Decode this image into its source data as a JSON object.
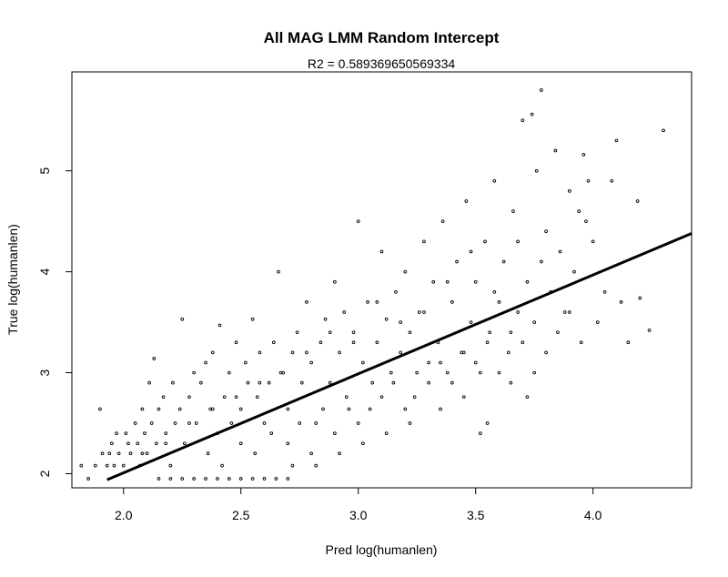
{
  "chart_data": {
    "type": "scatter",
    "title": "All MAG LMM Random Intercept",
    "subtitle": "R2 = 0.589369650569334",
    "xlabel": "Pred log(humanlen)",
    "ylabel": "True log(humanlen)",
    "xlim": [
      1.78,
      4.42
    ],
    "ylim": [
      1.86,
      5.98
    ],
    "xticks": [
      2.0,
      2.5,
      3.0,
      3.5,
      4.0
    ],
    "xtick_labels": [
      "2.0",
      "2.5",
      "3.0",
      "3.5",
      "4.0"
    ],
    "yticks": [
      2,
      3,
      4,
      5
    ],
    "ytick_labels": [
      "2",
      "3",
      "4",
      "5"
    ],
    "grid": false,
    "legend": "none",
    "point_color": "#000000",
    "fit_line": {
      "x": [
        1.93,
        4.42
      ],
      "y": [
        1.94,
        4.38
      ],
      "color": "#000000"
    },
    "series": [
      {
        "points": [
          [
            1.82,
            2.08
          ],
          [
            1.85,
            1.95
          ],
          [
            1.88,
            2.08
          ],
          [
            1.9,
            2.64
          ],
          [
            1.91,
            2.2
          ],
          [
            1.93,
            2.08
          ],
          [
            1.94,
            2.2
          ],
          [
            1.95,
            2.3
          ],
          [
            1.96,
            2.08
          ],
          [
            1.97,
            2.4
          ],
          [
            1.98,
            2.2
          ],
          [
            2.0,
            2.08
          ],
          [
            2.01,
            2.4
          ],
          [
            2.02,
            2.3
          ],
          [
            2.03,
            2.2
          ],
          [
            2.05,
            2.5
          ],
          [
            2.06,
            2.3
          ],
          [
            2.07,
            2.08
          ],
          [
            2.08,
            2.64
          ],
          [
            2.09,
            2.4
          ],
          [
            2.1,
            2.2
          ],
          [
            2.11,
            2.9
          ],
          [
            2.12,
            2.5
          ],
          [
            2.13,
            3.14
          ],
          [
            2.14,
            2.3
          ],
          [
            2.15,
            2.64
          ],
          [
            2.17,
            2.76
          ],
          [
            2.18,
            2.4
          ],
          [
            2.2,
            2.08
          ],
          [
            2.21,
            2.9
          ],
          [
            2.22,
            2.5
          ],
          [
            2.24,
            2.64
          ],
          [
            2.25,
            3.53
          ],
          [
            2.26,
            2.3
          ],
          [
            2.28,
            2.76
          ],
          [
            2.3,
            3.0
          ],
          [
            2.31,
            2.5
          ],
          [
            2.33,
            2.9
          ],
          [
            2.35,
            3.1
          ],
          [
            2.37,
            2.64
          ],
          [
            2.38,
            3.2
          ],
          [
            2.4,
            2.4
          ],
          [
            2.41,
            3.47
          ],
          [
            2.43,
            2.76
          ],
          [
            2.45,
            3.0
          ],
          [
            2.46,
            2.5
          ],
          [
            2.48,
            3.3
          ],
          [
            2.5,
            2.64
          ],
          [
            2.52,
            3.1
          ],
          [
            2.53,
            2.9
          ],
          [
            2.55,
            3.53
          ],
          [
            2.57,
            2.76
          ],
          [
            2.58,
            3.2
          ],
          [
            2.6,
            2.5
          ],
          [
            2.62,
            2.9
          ],
          [
            2.64,
            3.3
          ],
          [
            2.66,
            4.0
          ],
          [
            2.67,
            3.0
          ],
          [
            2.7,
            2.64
          ],
          [
            2.72,
            3.2
          ],
          [
            2.74,
            3.4
          ],
          [
            2.76,
            2.9
          ],
          [
            2.78,
            3.7
          ],
          [
            2.8,
            3.1
          ],
          [
            2.82,
            2.5
          ],
          [
            2.84,
            3.3
          ],
          [
            2.86,
            3.53
          ],
          [
            2.88,
            2.9
          ],
          [
            2.9,
            3.9
          ],
          [
            2.92,
            3.2
          ],
          [
            2.94,
            3.6
          ],
          [
            2.96,
            2.64
          ],
          [
            2.98,
            3.4
          ],
          [
            3.0,
            4.5
          ],
          [
            3.02,
            3.1
          ],
          [
            3.04,
            3.7
          ],
          [
            3.06,
            2.9
          ],
          [
            3.08,
            3.3
          ],
          [
            3.1,
            4.2
          ],
          [
            3.12,
            3.53
          ],
          [
            3.14,
            3.0
          ],
          [
            3.16,
            3.8
          ],
          [
            3.18,
            3.2
          ],
          [
            3.2,
            4.0
          ],
          [
            3.22,
            3.4
          ],
          [
            3.24,
            2.76
          ],
          [
            3.26,
            3.6
          ],
          [
            3.28,
            4.3
          ],
          [
            3.3,
            3.1
          ],
          [
            3.32,
            3.9
          ],
          [
            3.34,
            3.3
          ],
          [
            3.36,
            4.5
          ],
          [
            3.38,
            3.0
          ],
          [
            3.4,
            3.7
          ],
          [
            3.42,
            4.1
          ],
          [
            3.44,
            3.2
          ],
          [
            3.46,
            4.7
          ],
          [
            3.48,
            3.5
          ],
          [
            3.5,
            3.9
          ],
          [
            3.52,
            3.0
          ],
          [
            3.54,
            4.3
          ],
          [
            3.56,
            3.4
          ],
          [
            3.58,
            4.9
          ],
          [
            3.6,
            3.7
          ],
          [
            3.62,
            4.1
          ],
          [
            3.64,
            3.2
          ],
          [
            3.66,
            4.6
          ],
          [
            3.68,
            3.6
          ],
          [
            3.7,
            5.5
          ],
          [
            3.72,
            3.9
          ],
          [
            3.74,
            5.56
          ],
          [
            3.76,
            5.0
          ],
          [
            3.78,
            5.8
          ],
          [
            3.8,
            4.4
          ],
          [
            3.82,
            3.8
          ],
          [
            3.84,
            5.2
          ],
          [
            3.86,
            4.2
          ],
          [
            3.88,
            3.6
          ],
          [
            3.9,
            4.8
          ],
          [
            3.92,
            4.0
          ],
          [
            3.94,
            4.6
          ],
          [
            3.96,
            5.16
          ],
          [
            3.98,
            4.9
          ],
          [
            4.0,
            4.3
          ],
          [
            4.02,
            3.5
          ],
          [
            4.05,
            3.8
          ],
          [
            4.08,
            4.9
          ],
          [
            4.1,
            5.3
          ],
          [
            4.12,
            3.7
          ],
          [
            4.15,
            3.3
          ],
          [
            4.19,
            4.7
          ],
          [
            4.2,
            3.74
          ],
          [
            4.24,
            3.42
          ],
          [
            4.3,
            5.4
          ],
          [
            2.15,
            1.95
          ],
          [
            2.2,
            1.95
          ],
          [
            2.25,
            1.95
          ],
          [
            2.3,
            1.95
          ],
          [
            2.35,
            1.95
          ],
          [
            2.4,
            1.95
          ],
          [
            2.45,
            1.95
          ],
          [
            2.5,
            1.95
          ],
          [
            2.55,
            1.95
          ],
          [
            2.6,
            1.95
          ],
          [
            2.65,
            1.95
          ],
          [
            2.7,
            1.95
          ],
          [
            2.36,
            2.2
          ],
          [
            2.42,
            2.08
          ],
          [
            2.5,
            2.3
          ],
          [
            2.56,
            2.2
          ],
          [
            2.63,
            2.4
          ],
          [
            2.7,
            2.3
          ],
          [
            2.75,
            2.5
          ],
          [
            2.8,
            2.2
          ],
          [
            2.85,
            2.64
          ],
          [
            2.9,
            2.4
          ],
          [
            2.95,
            2.76
          ],
          [
            3.0,
            2.5
          ],
          [
            3.05,
            2.64
          ],
          [
            3.1,
            2.76
          ],
          [
            3.15,
            2.9
          ],
          [
            3.2,
            2.64
          ],
          [
            3.25,
            3.0
          ],
          [
            3.3,
            2.9
          ],
          [
            3.35,
            3.1
          ],
          [
            3.4,
            2.9
          ],
          [
            3.45,
            3.2
          ],
          [
            3.5,
            3.1
          ],
          [
            3.55,
            3.3
          ],
          [
            3.6,
            3.0
          ],
          [
            3.65,
            3.4
          ],
          [
            3.7,
            3.3
          ],
          [
            3.75,
            3.5
          ],
          [
            3.8,
            3.2
          ],
          [
            3.85,
            3.4
          ],
          [
            3.9,
            3.6
          ],
          [
            3.95,
            3.3
          ],
          [
            3.97,
            4.5
          ],
          [
            3.78,
            4.1
          ],
          [
            3.68,
            4.3
          ],
          [
            3.58,
            3.8
          ],
          [
            3.48,
            4.2
          ],
          [
            3.38,
            3.9
          ],
          [
            3.28,
            3.6
          ],
          [
            3.18,
            3.5
          ],
          [
            3.08,
            3.7
          ],
          [
            2.98,
            3.3
          ],
          [
            2.88,
            3.4
          ],
          [
            2.78,
            3.2
          ],
          [
            2.68,
            3.0
          ],
          [
            2.58,
            2.9
          ],
          [
            2.48,
            2.76
          ],
          [
            2.38,
            2.64
          ],
          [
            2.28,
            2.5
          ],
          [
            2.18,
            2.3
          ],
          [
            2.08,
            2.2
          ],
          [
            3.35,
            2.64
          ],
          [
            3.45,
            2.76
          ],
          [
            3.55,
            2.5
          ],
          [
            3.65,
            2.9
          ],
          [
            3.75,
            3.0
          ],
          [
            3.12,
            2.4
          ],
          [
            3.22,
            2.5
          ],
          [
            2.92,
            2.2
          ],
          [
            3.02,
            2.3
          ],
          [
            2.72,
            2.08
          ],
          [
            2.82,
            2.08
          ],
          [
            3.52,
            2.4
          ],
          [
            3.72,
            2.76
          ]
        ]
      }
    ]
  }
}
